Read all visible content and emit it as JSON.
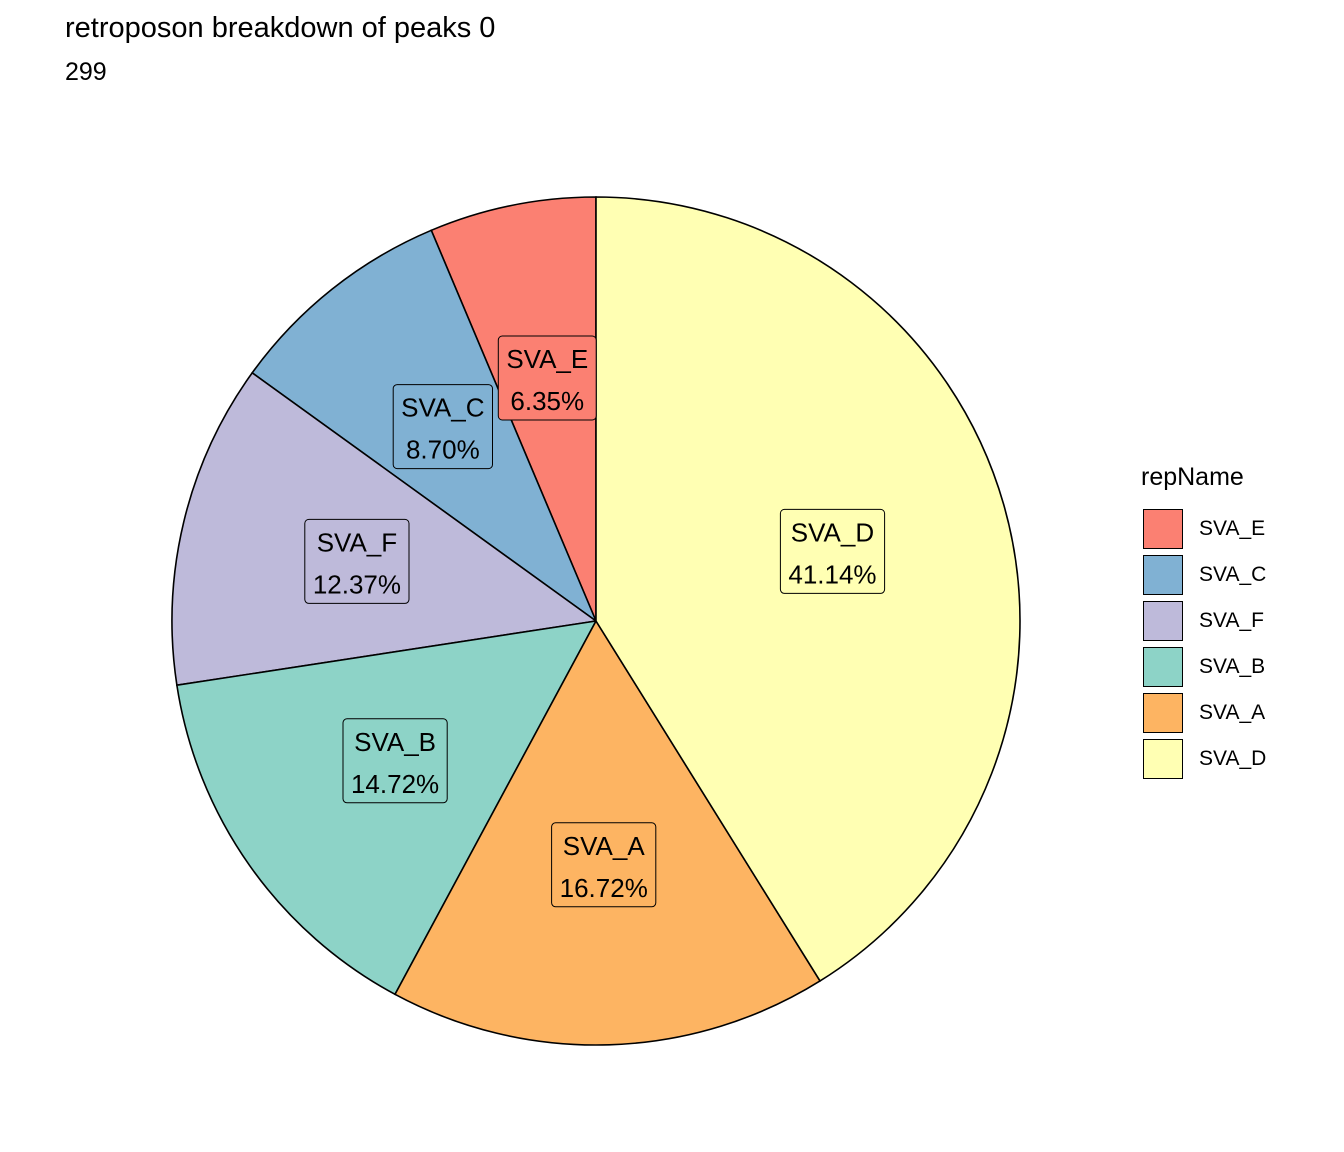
{
  "chart_data": {
    "type": "pie",
    "title": "retroposon breakdown of peaks 0",
    "subtitle": "299",
    "legend": {
      "title": "repName",
      "placement": "right"
    },
    "slices": [
      {
        "name": "SVA_E",
        "label": "SVA_E",
        "percent_label": "6.35%",
        "value": 6.35,
        "color": "#FB8072"
      },
      {
        "name": "SVA_C",
        "label": "SVA_C",
        "percent_label": "8.70%",
        "value": 8.7,
        "color": "#80B1D3"
      },
      {
        "name": "SVA_F",
        "label": "SVA_F",
        "percent_label": "12.37%",
        "value": 12.37,
        "color": "#BEBADA"
      },
      {
        "name": "SVA_B",
        "label": "SVA_B",
        "percent_label": "14.72%",
        "value": 14.72,
        "color": "#8DD3C7"
      },
      {
        "name": "SVA_A",
        "label": "SVA_A",
        "percent_label": "16.72%",
        "value": 16.72,
        "color": "#FDB462"
      },
      {
        "name": "SVA_D",
        "label": "SVA_D",
        "percent_label": "41.14%",
        "value": 41.14,
        "color": "#FFFFB3"
      }
    ]
  }
}
